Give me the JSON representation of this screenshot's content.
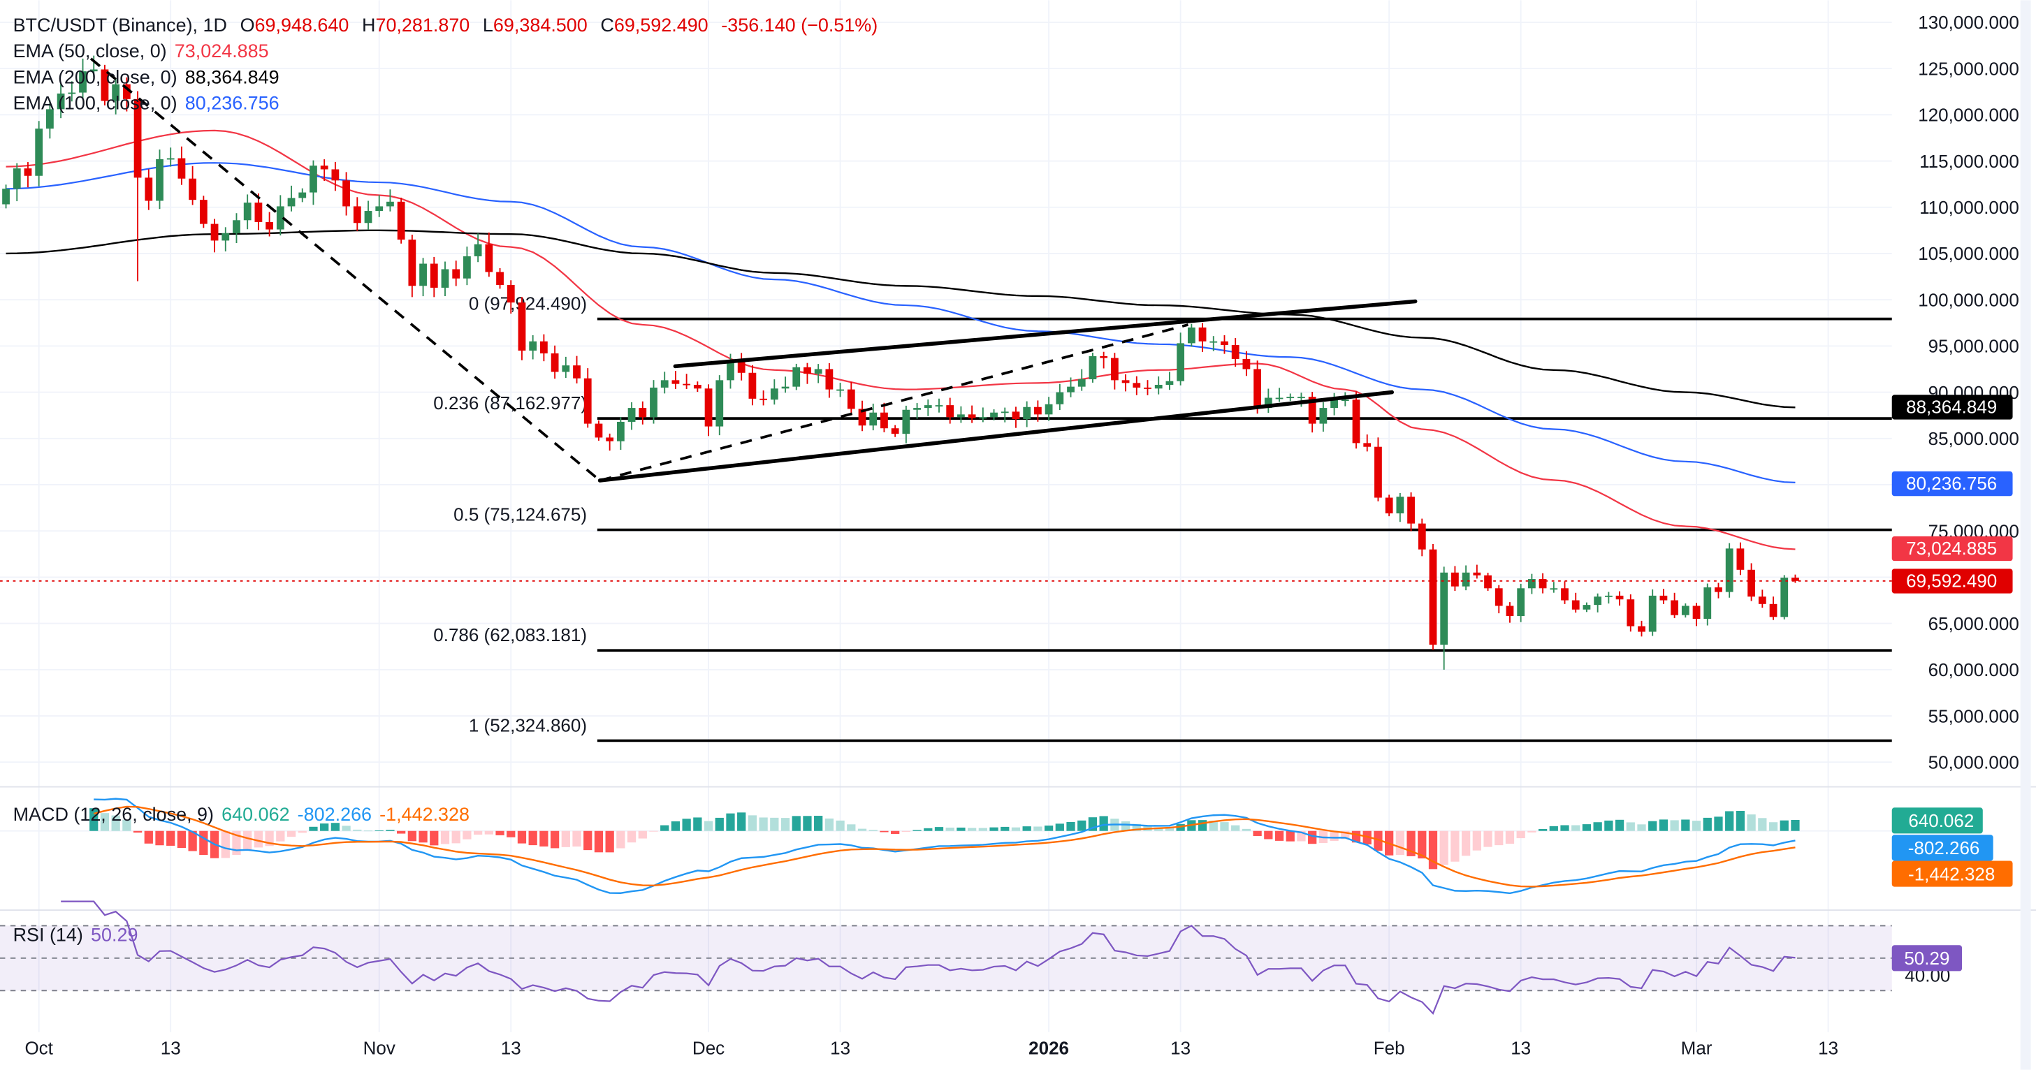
{
  "header": {
    "symbol": "BTC/USDT (Binance), 1D",
    "o_label": "O",
    "o_value": "69,948.640",
    "h_label": "H",
    "h_value": "70,281.870",
    "l_label": "L",
    "l_value": "69,384.500",
    "c_label": "C",
    "c_value": "69,592.490",
    "change": "-356.140 (−0.51%)"
  },
  "indicators": {
    "ema50": {
      "label": "EMA (50, close, 0)",
      "value": "73,024.885",
      "color": "#f23645"
    },
    "ema200": {
      "label": "EMA (200, close, 0)",
      "value": "88,364.849",
      "color": "#000000"
    },
    "ema100": {
      "label": "EMA (100, close, 0)",
      "value": "80,236.756",
      "color": "#2962ff"
    },
    "macd": {
      "label": "MACD (12, 26, close, 9)",
      "hist": "640.062",
      "macd": "-802.266",
      "signal": "-1,442.328",
      "hist_color": "#22ab94",
      "macd_color": "#2196f3",
      "signal_color": "#ff6d00"
    },
    "rsi": {
      "label": "RSI (14)",
      "value": "50.29",
      "color": "#7e57c2",
      "axis_label": "40.00"
    }
  },
  "price_axis": [
    "130,000.000",
    "125,000.000",
    "120,000.000",
    "115,000.000",
    "110,000.000",
    "105,000.000",
    "100,000.000",
    "95,000.000",
    "90,000.000",
    "85,000.000",
    "75,000.000",
    "65,000.000",
    "60,000.000",
    "55,000.000",
    "50,000.000"
  ],
  "badges": {
    "ema200": "88,364.849",
    "ema100": "80,236.756",
    "ema50": "73,024.885",
    "last": "69,592.490",
    "last_color": "#e00000"
  },
  "fib_levels": [
    {
      "label": "0 (97,924.490)",
      "price": 97924.49
    },
    {
      "label": "0.236 (87,162.977)",
      "price": 87162.977
    },
    {
      "label": "0.5 (75,124.675)",
      "price": 75124.675
    },
    {
      "label": "0.786 (62,083.181)",
      "price": 62083.181
    },
    {
      "label": "1 (52,324.860)",
      "price": 52324.86
    }
  ],
  "time_axis": [
    {
      "label": "Oct",
      "date": "2025-10-01"
    },
    {
      "label": "13",
      "date": "2025-10-13"
    },
    {
      "label": "Nov",
      "date": "2025-11-01"
    },
    {
      "label": "13",
      "date": "2025-11-13"
    },
    {
      "label": "Dec",
      "date": "2025-12-01"
    },
    {
      "label": "13",
      "date": "2025-12-13"
    },
    {
      "label": "2026",
      "date": "2026-01-01"
    },
    {
      "label": "13",
      "date": "2026-01-13"
    },
    {
      "label": "Feb",
      "date": "2026-02-01"
    },
    {
      "label": "13",
      "date": "2026-02-13"
    },
    {
      "label": "Mar",
      "date": "2026-03-01"
    },
    {
      "label": "13",
      "date": "2026-03-13"
    }
  ],
  "chart_data": {
    "type": "candlestick",
    "first_date": "2025-09-28",
    "ylim": [
      48000,
      131000
    ],
    "up_color": "#2e8b57",
    "down_color": "#e60000",
    "closes": [
      112000,
      114200,
      113400,
      118500,
      120600,
      122300,
      122400,
      124700,
      124900,
      121500,
      123300,
      121700,
      113200,
      110700,
      115200,
      115300,
      113100,
      110800,
      108200,
      106400,
      107200,
      108600,
      110500,
      108400,
      107600,
      110100,
      111000,
      111600,
      114500,
      114100,
      112900,
      110100,
      108300,
      109600,
      110100,
      110600,
      106500,
      101500,
      103900,
      101300,
      103300,
      102300,
      104700,
      106000,
      103000,
      101600,
      99700,
      94500,
      95500,
      94200,
      92200,
      92900,
      91500,
      86600,
      85100,
      84700,
      86800,
      88300,
      87300,
      90500,
      91300,
      90900,
      90800,
      90400,
      86300,
      91300,
      93500,
      92100,
      89300,
      89200,
      90400,
      90600,
      92700,
      92000,
      92500,
      90300,
      90300,
      88200,
      86400,
      87800,
      86100,
      85500,
      88100,
      88300,
      88600,
      88600,
      87300,
      87600,
      87200,
      87300,
      87800,
      87900,
      87100,
      88400,
      87600,
      88700,
      90000,
      90600,
      91400,
      93900,
      93700,
      91300,
      91000,
      90500,
      90400,
      90800,
      91200,
      95300,
      97000,
      95500,
      95500,
      95100,
      93600,
      92500,
      88300,
      89400,
      89400,
      89500,
      89500,
      86600,
      88300,
      89200,
      89200,
      84500,
      84100,
      78600,
      76900,
      78700,
      75800,
      73000,
      62700,
      70500,
      69000,
      70500,
      70200,
      68800,
      66900,
      65800,
      68800,
      69800,
      68800,
      68800,
      67500,
      66500,
      67000,
      67900,
      68000,
      67600,
      64700,
      64100,
      68000,
      67500,
      65900,
      66900,
      65500,
      68900,
      68400,
      73100,
      70800,
      67900,
      67100,
      65700,
      69948.64,
      69592.49
    ],
    "last_candle": {
      "open": 69948.64,
      "high": 70281.87,
      "low": 69384.5,
      "close": 69592.49
    },
    "notable_lows": [
      {
        "date": "2025-10-10",
        "low": 102000
      },
      {
        "date": "2026-02-06",
        "low": 60000
      }
    ],
    "ema_series": {
      "ema50": [
        [
          "2025-09-28",
          114400
        ],
        [
          "2025-10-17",
          118300
        ],
        [
          "2025-11-01",
          111300
        ],
        [
          "2025-11-13",
          105700
        ],
        [
          "2025-11-25",
          97300
        ],
        [
          "2025-12-07",
          92400
        ],
        [
          "2025-12-19",
          90300
        ],
        [
          "2025-12-31",
          91000
        ],
        [
          "2026-01-11",
          92400
        ],
        [
          "2026-01-20",
          93100
        ],
        [
          "2026-01-28",
          90300
        ],
        [
          "2026-02-04",
          86000
        ],
        [
          "2026-02-16",
          80500
        ],
        [
          "2026-02-28",
          75500
        ],
        [
          "2026-03-10",
          73024.885
        ]
      ],
      "ema100": [
        [
          "2025-09-28",
          112000
        ],
        [
          "2025-10-17",
          114800
        ],
        [
          "2025-11-01",
          112700
        ],
        [
          "2025-11-13",
          110600
        ],
        [
          "2025-11-25",
          105700
        ],
        [
          "2025-12-07",
          102200
        ],
        [
          "2025-12-19",
          99400
        ],
        [
          "2025-12-31",
          96600
        ],
        [
          "2026-01-11",
          95200
        ],
        [
          "2026-01-23",
          93800
        ],
        [
          "2026-02-04",
          90300
        ],
        [
          "2026-02-16",
          86000
        ],
        [
          "2026-02-28",
          82500
        ],
        [
          "2026-03-10",
          80236.756
        ]
      ],
      "ema200": [
        [
          "2025-09-28",
          105000
        ],
        [
          "2025-10-17",
          107100
        ],
        [
          "2025-11-01",
          107500
        ],
        [
          "2025-11-13",
          107100
        ],
        [
          "2025-11-25",
          105000
        ],
        [
          "2025-12-07",
          102900
        ],
        [
          "2025-12-19",
          101500
        ],
        [
          "2025-12-31",
          100400
        ],
        [
          "2026-01-11",
          99400
        ],
        [
          "2026-01-23",
          98400
        ],
        [
          "2026-02-04",
          95900
        ],
        [
          "2026-02-16",
          92400
        ],
        [
          "2026-02-28",
          90000
        ],
        [
          "2026-03-10",
          88364.849
        ]
      ]
    },
    "rsi_levels": [
      70,
      50,
      30
    ]
  }
}
